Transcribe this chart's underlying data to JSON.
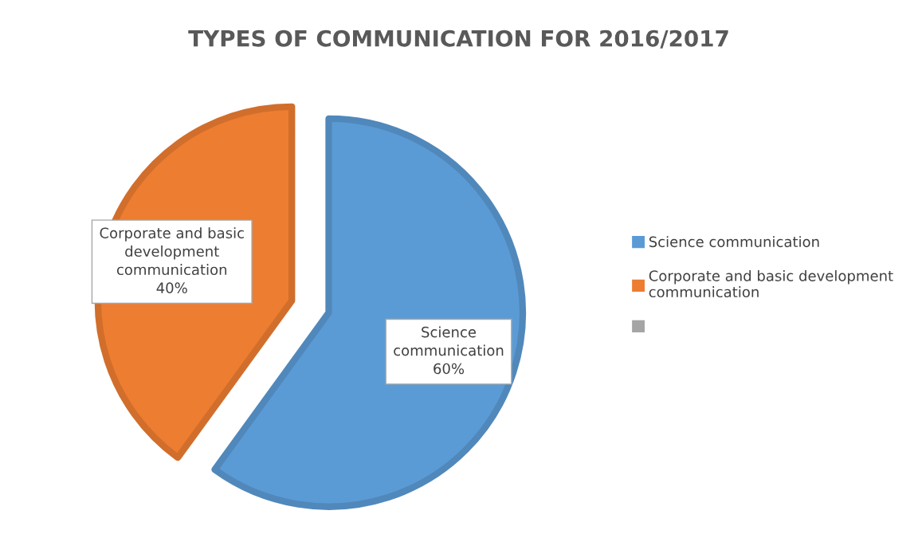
{
  "chart_data": {
    "type": "pie",
    "title": "TYPES OF COMMUNICATION FOR 2016/2017",
    "categories": [
      "Science communication",
      "Corporate and basic development communication",
      null
    ],
    "values": [
      60,
      40,
      0
    ],
    "colors": [
      "#5b9bd5",
      "#ed7d31",
      "#a5a5a5"
    ],
    "value_labels": [
      "60%",
      "40%",
      null
    ],
    "legend": "right"
  }
}
